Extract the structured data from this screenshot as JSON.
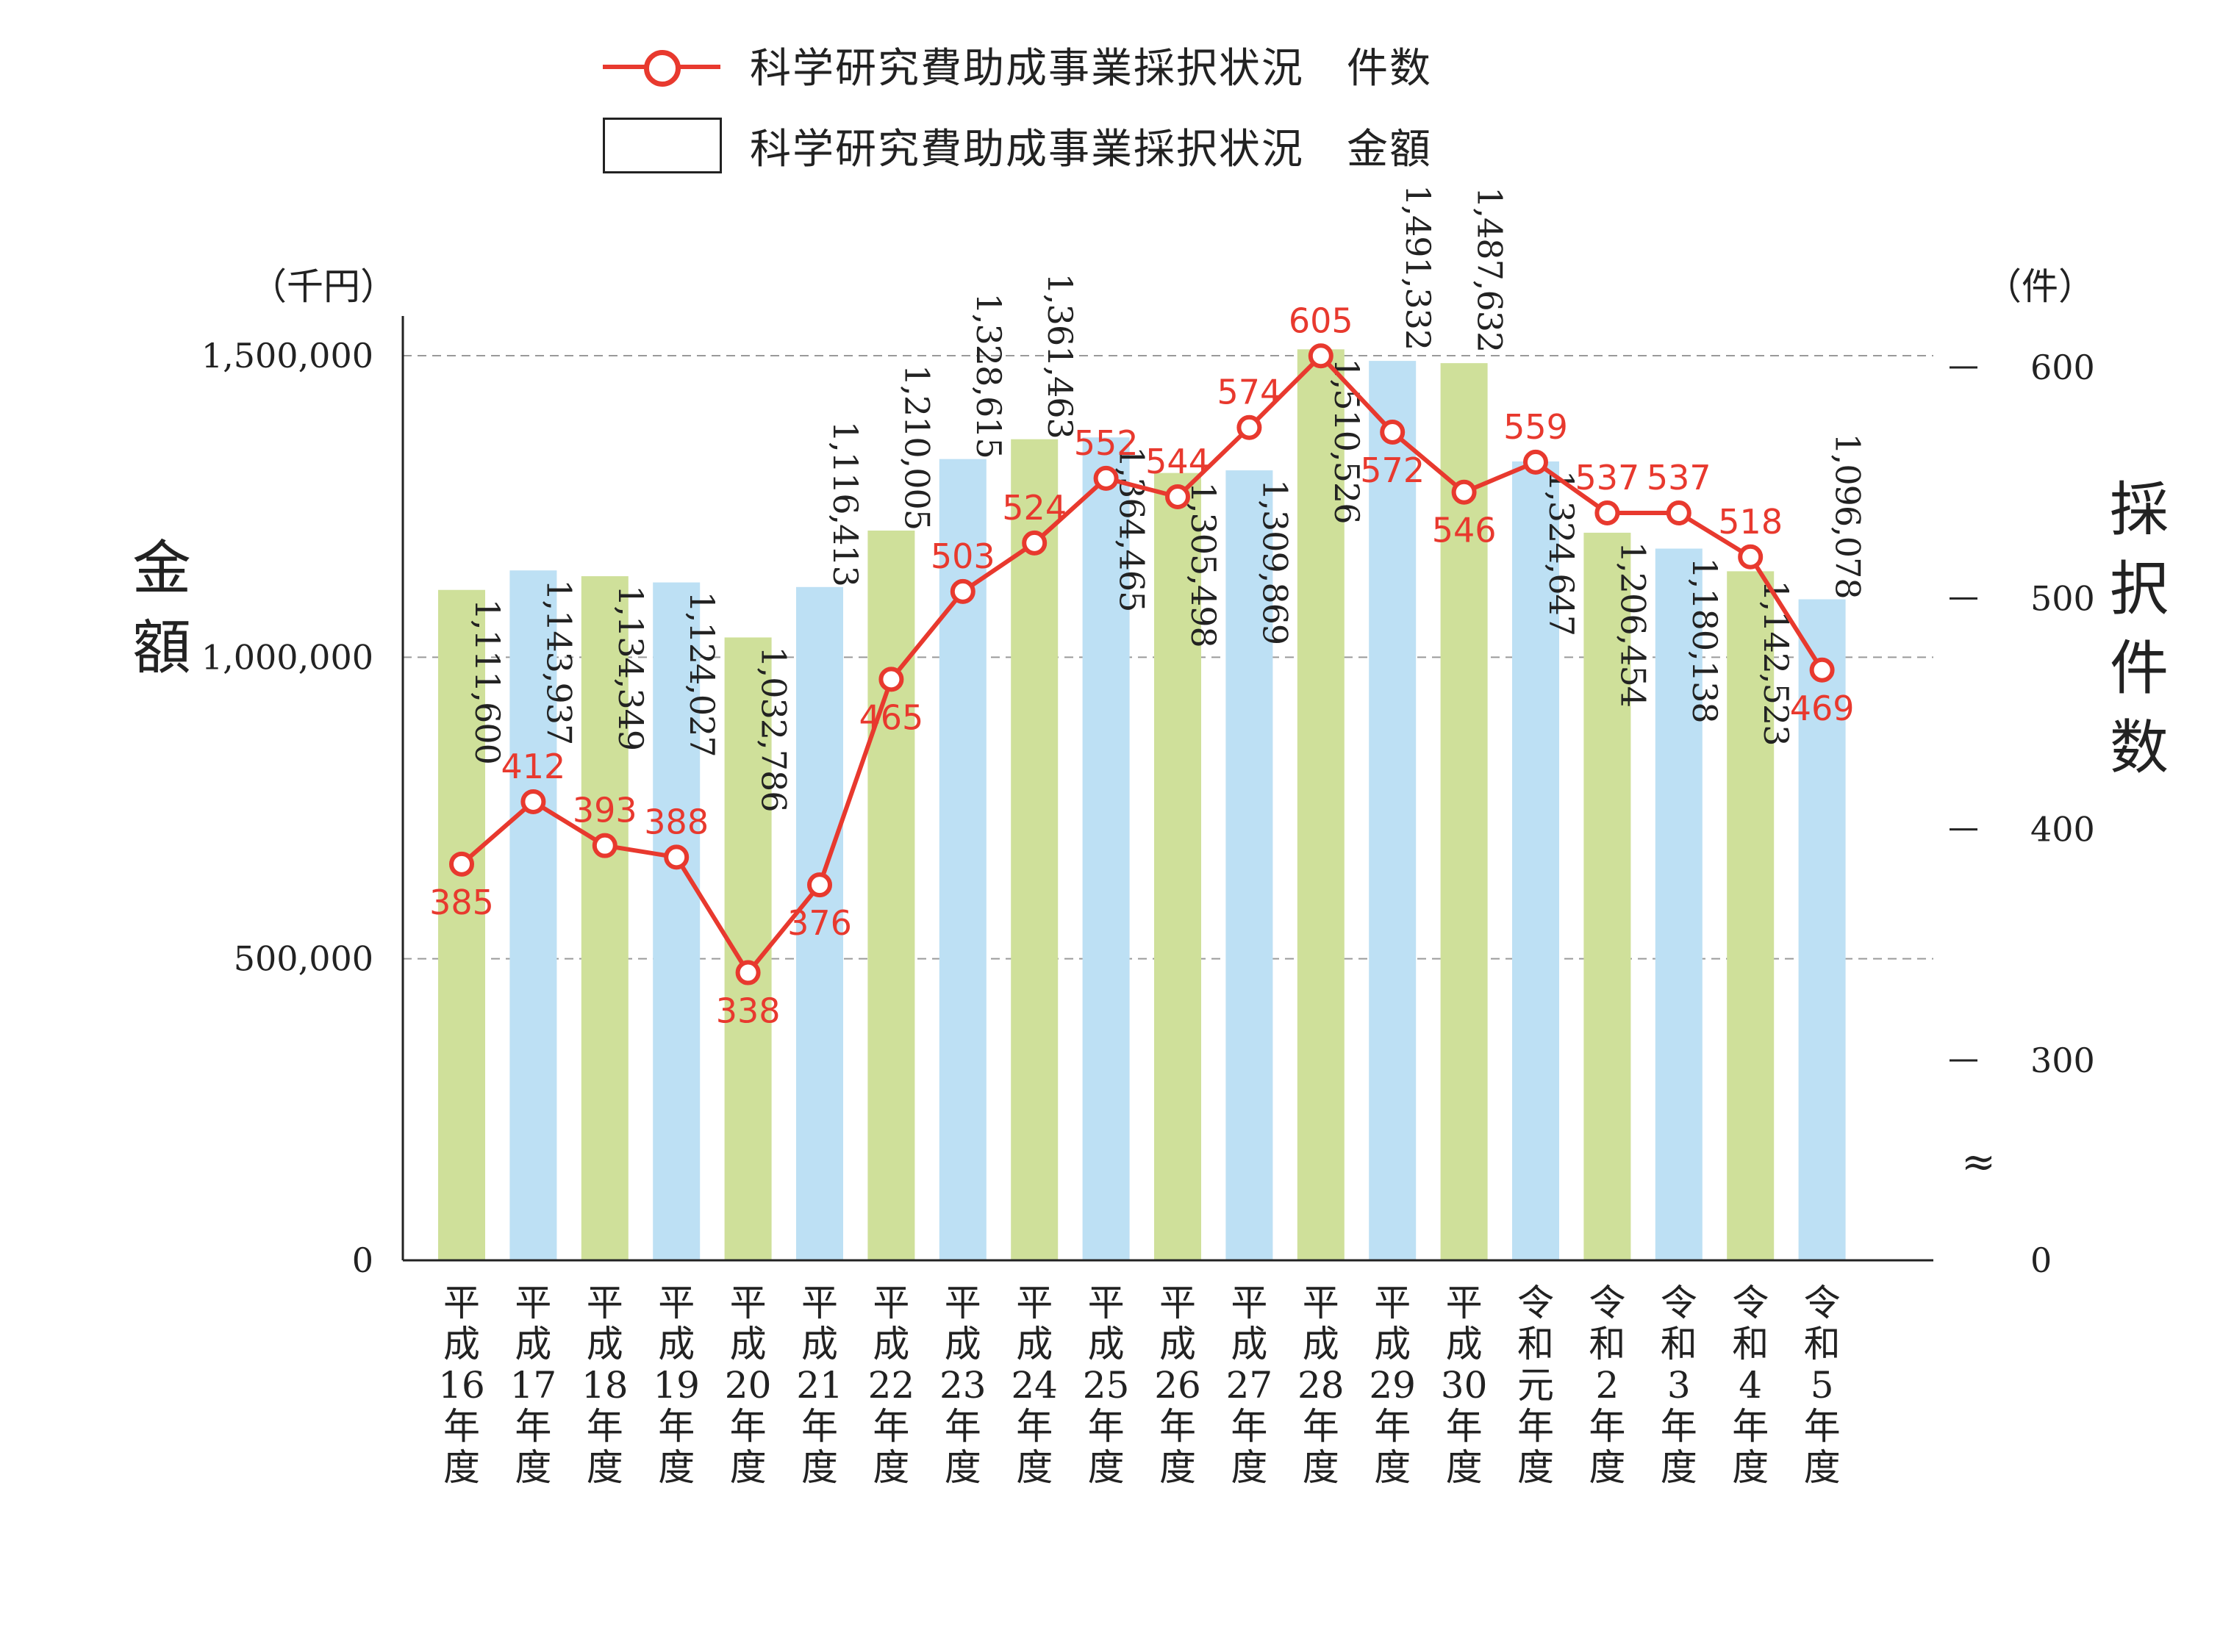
{
  "legend": {
    "line_label": "科学研究費助成事業採択状況　件数",
    "bar_label": "科学研究費助成事業採択状況　金額"
  },
  "axes": {
    "left_unit": "（千円）",
    "right_unit": "（件）",
    "left_title": "金額",
    "right_title": "採択件数",
    "axis_break_symbol": "≈"
  },
  "colors": {
    "bar_green": "#cfe09a",
    "bar_blue": "#bde0f4",
    "line_red": "#e8392e",
    "grid": "#9a9a9a"
  },
  "chart_data": {
    "type": "bar",
    "categories": [
      "平成16年度",
      "平成17年度",
      "平成18年度",
      "平成19年度",
      "平成20年度",
      "平成21年度",
      "平成22年度",
      "平成23年度",
      "平成24年度",
      "平成25年度",
      "平成26年度",
      "平成27年度",
      "平成28年度",
      "平成29年度",
      "平成30年度",
      "令和元年度",
      "令和2年度",
      "令和3年度",
      "令和4年度",
      "令和5年度"
    ],
    "series": [
      {
        "name": "科学研究費助成事業採択状況　金額",
        "type": "bar",
        "axis": "left",
        "values": [
          1111600,
          1143937,
          1134349,
          1124027,
          1032786,
          1116413,
          1210005,
          1328615,
          1361463,
          1364465,
          1305498,
          1309869,
          1510526,
          1491332,
          1487632,
          1324647,
          1206454,
          1180138,
          1142523,
          1096078
        ],
        "labels": [
          "1,111,600",
          "1,143,937",
          "1,134,349",
          "1,124,027",
          "1,032,786",
          "1,116,413",
          "1,210,005",
          "1,328,615",
          "1,361,463",
          "1,364,465",
          "1,305,498",
          "1,309,869",
          "1,510,526",
          "1,491,332",
          "1,487,632",
          "1,324,647",
          "1,206,454",
          "1,180,138",
          "1,142,523",
          "1,096,078"
        ],
        "colors": [
          "green",
          "blue",
          "green",
          "blue",
          "green",
          "blue",
          "green",
          "blue",
          "green",
          "blue",
          "green",
          "blue",
          "green",
          "blue",
          "green",
          "blue",
          "green",
          "blue",
          "green",
          "blue"
        ]
      },
      {
        "name": "科学研究費助成事業採択状況　件数",
        "type": "line",
        "axis": "right",
        "values": [
          385,
          412,
          393,
          388,
          338,
          376,
          465,
          503,
          524,
          552,
          544,
          574,
          605,
          572,
          546,
          559,
          537,
          537,
          518,
          469
        ]
      }
    ],
    "left_axis": {
      "ylim": [
        0,
        1500000
      ],
      "ticks": [
        0,
        500000,
        1000000,
        1500000
      ],
      "tick_labels": [
        "0",
        "500,000",
        "1,000,000",
        "1,500,000"
      ]
    },
    "right_axis": {
      "ylim": [
        200,
        600
      ],
      "ticks": [
        0,
        300,
        400,
        500,
        600
      ],
      "tick_labels": [
        "0",
        "300",
        "400",
        "500",
        "600"
      ],
      "broken": true
    },
    "grid": "dashed horizontal at left-axis ticks",
    "legend_position": "top"
  }
}
